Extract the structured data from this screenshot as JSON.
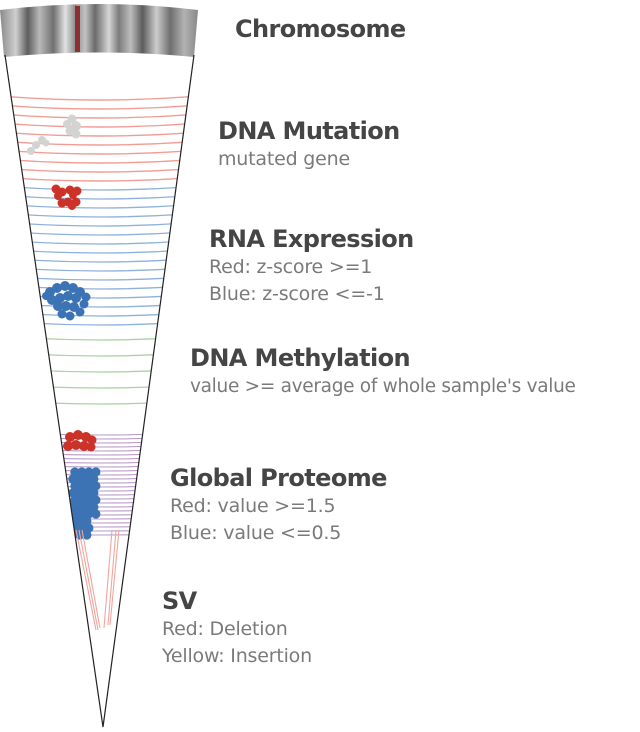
{
  "colors": {
    "mutation_line": "#f19c95",
    "mutation_dot": "#d3d3d3",
    "expression_red": "#cc3328",
    "expression_blue": "#3b73b5",
    "expression_line": "#8fb0dc",
    "methylation_line": "#a9d3a0",
    "proteome_line": "#b79bc8",
    "sv_line": "#f0a59d",
    "title_text": "#454545",
    "sub_text": "#7a7a7a"
  },
  "tracks": [
    {
      "id": "chromosome",
      "title": "Chromosome",
      "lines": []
    },
    {
      "id": "dna-mutation",
      "title": "DNA Mutation",
      "lines": [
        "mutated gene"
      ]
    },
    {
      "id": "rna-expression",
      "title": "RNA Expression",
      "lines": [
        "Red: z-score >=1",
        "Blue: z-score <=-1"
      ]
    },
    {
      "id": "dna-methylation",
      "title": "DNA Methylation",
      "lines": [
        "value >= average of whole sample's value"
      ]
    },
    {
      "id": "global-proteome",
      "title": "Global Proteome",
      "lines": [
        "Red: value >=1.5",
        "Blue: value <=0.5"
      ]
    },
    {
      "id": "sv",
      "title": "SV",
      "lines": [
        "Red: Deletion",
        "Yellow: Insertion"
      ]
    }
  ]
}
